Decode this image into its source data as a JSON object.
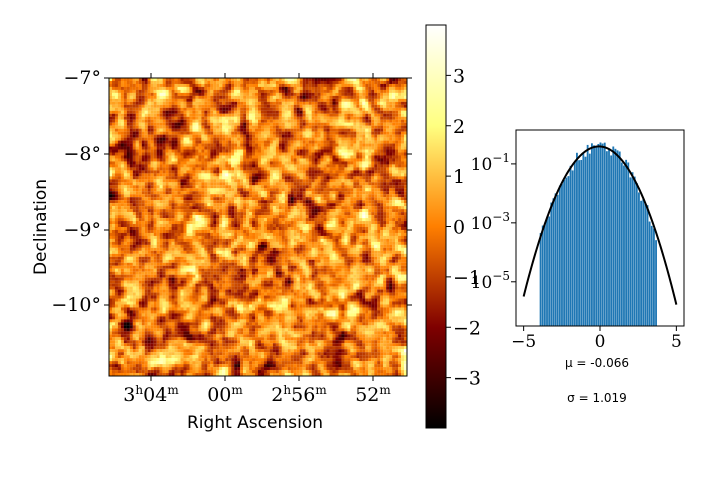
{
  "chart_data": [
    {
      "type": "heatmap",
      "description_free": true,
      "xlabel": "Right Ascension",
      "ylabel": "Declination",
      "x_ticks": [
        {
          "hm": "3",
          "h": "h",
          "m_val": "04",
          "m": "m"
        },
        {
          "hm": "",
          "h": "",
          "m_val": "00",
          "m": "m"
        },
        {
          "hm": "2",
          "h": "h",
          "m_val": "56",
          "m": "m"
        },
        {
          "hm": "",
          "h": "",
          "m_val": "52",
          "m": "m"
        }
      ],
      "y_ticks": [
        "−7°",
        "−8°",
        "−9°",
        "−10°"
      ],
      "value_range": [
        -4,
        4
      ],
      "colormap": "afmhot",
      "colorbar_ticks": [
        "3",
        "2",
        "1",
        "0",
        "−1",
        "−2",
        "−3"
      ],
      "colorbar_tick_values": [
        3,
        2,
        1,
        0,
        -1,
        -2,
        -3
      ]
    },
    {
      "type": "bar",
      "yscale": "log",
      "bar_color": "#1f77b4",
      "curve_color": "#000000",
      "xlim": [
        -5.5,
        5.5
      ],
      "ylim_log10": [
        -6.5,
        0.15
      ],
      "x_ticks": [
        "−5",
        "0",
        "5"
      ],
      "x_tick_values": [
        -5,
        0,
        5
      ],
      "y_ticks": [
        "10−1",
        "10−3",
        "10−5"
      ],
      "y_tick_exponents": [
        -1,
        -3,
        -5
      ],
      "y_tick_base": "10",
      "y_tick_exp_labels": [
        "−1",
        "−3",
        "−5"
      ],
      "mu_label": "μ = -0.066",
      "sigma_label": "σ = 1.019",
      "mu": -0.066,
      "sigma": 1.019,
      "bins": {
        "start": -3.95,
        "end": 3.75,
        "width": 0.14
      }
    }
  ]
}
